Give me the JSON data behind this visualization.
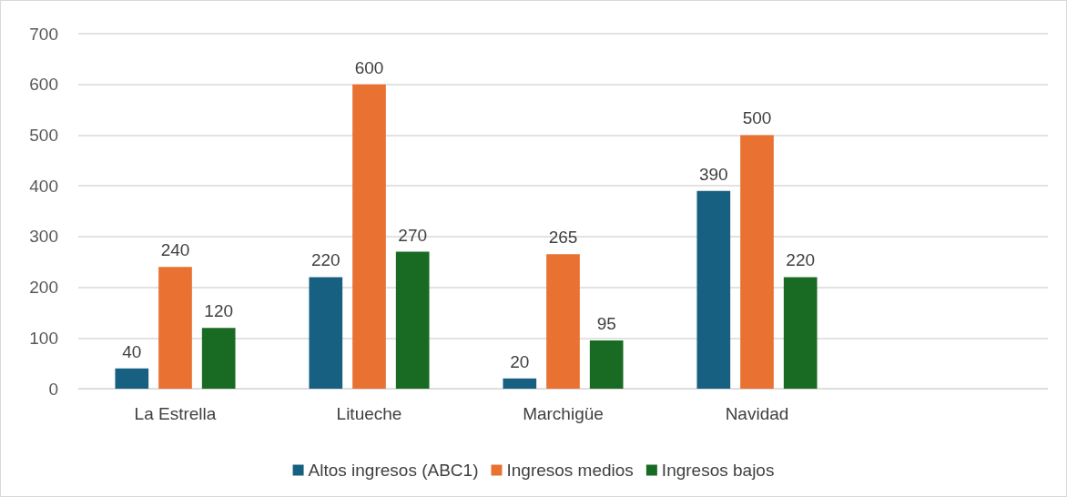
{
  "chart_data": {
    "type": "bar",
    "categories": [
      "La Estrella",
      "Litueche",
      "Marchigüe",
      "Navidad",
      null
    ],
    "series": [
      {
        "name": "Altos ingresos (ABC1)",
        "color": "#176082",
        "values": [
          40,
          220,
          20,
          390,
          null
        ]
      },
      {
        "name": "Ingresos medios",
        "color": "#e97132",
        "values": [
          240,
          600,
          265,
          500,
          null
        ]
      },
      {
        "name": "Ingresos bajos",
        "color": "#196b24",
        "values": [
          120,
          270,
          95,
          220,
          null
        ]
      }
    ],
    "ylim": [
      0,
      700
    ],
    "yticks": [
      0,
      100,
      200,
      300,
      400,
      500,
      600,
      700
    ],
    "grid": "y",
    "legend": "bottom",
    "data_labels": true
  }
}
